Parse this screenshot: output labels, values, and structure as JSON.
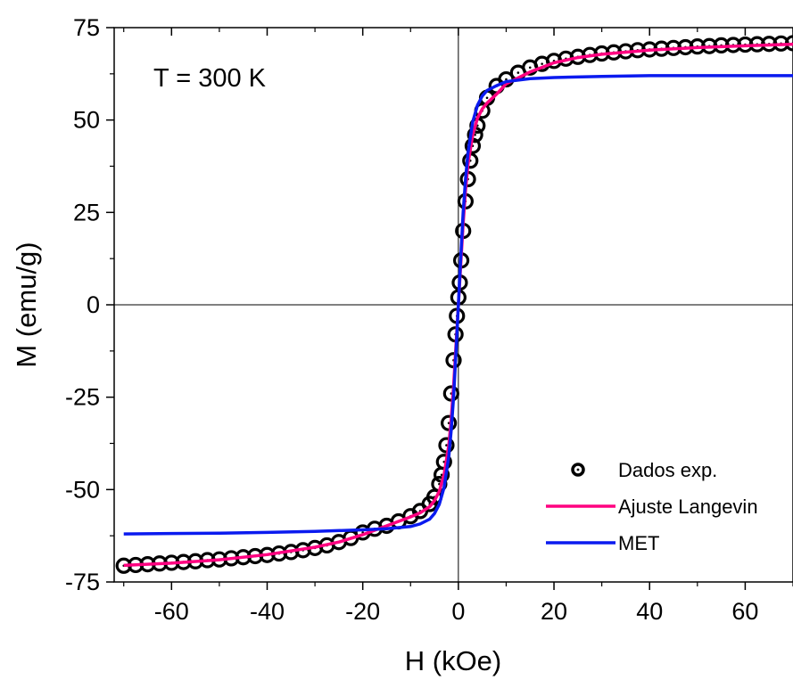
{
  "chart_data": {
    "type": "scatter",
    "annotation": "T = 300 K",
    "xlabel": "H (kOe)",
    "ylabel": "M (emu/g)",
    "xlim": [
      -72,
      70
    ],
    "ylim": [
      -75,
      75
    ],
    "x_ticks": [
      -60,
      -40,
      -20,
      0,
      20,
      40,
      60
    ],
    "x_tick_labels": [
      "-60",
      "-40",
      "-20",
      "0",
      "20",
      "40",
      "60"
    ],
    "y_ticks": [
      -75,
      -50,
      -25,
      0,
      25,
      50,
      75
    ],
    "y_tick_labels": [
      "-75",
      "-50",
      "-25",
      "0",
      "25",
      "50",
      "75"
    ],
    "grid": false,
    "zero_lines": true,
    "legend_position": "bottom-right",
    "series": [
      {
        "name": "Dados exp.",
        "kind": "markers",
        "marker": "open-circle",
        "color": "#000000",
        "x": [
          -70,
          -67.5,
          -65,
          -62.5,
          -60,
          -57.5,
          -55,
          -52.5,
          -50,
          -47.5,
          -45,
          -42.5,
          -40,
          -37.5,
          -35,
          -32.5,
          -30,
          -27.5,
          -25,
          -22.5,
          -20,
          -17.5,
          -15,
          -12.5,
          -10,
          -8,
          -6,
          -5,
          -4,
          -3.5,
          -3,
          -2.5,
          -2,
          -1.5,
          -1,
          -0.6,
          -0.3,
          0,
          0.3,
          0.6,
          1,
          1.5,
          2,
          2.5,
          3,
          3.5,
          4,
          5,
          6,
          8,
          10,
          12.5,
          15,
          17.5,
          20,
          22.5,
          25,
          27.5,
          30,
          32.5,
          35,
          37.5,
          40,
          42.5,
          45,
          47.5,
          50,
          52.5,
          55,
          57.5,
          60,
          62.5,
          65,
          67.5,
          70
        ],
        "y": [
          -70.6,
          -70.4,
          -70.2,
          -70.0,
          -69.8,
          -69.6,
          -69.4,
          -69.1,
          -68.9,
          -68.6,
          -68.3,
          -68.0,
          -67.7,
          -67.3,
          -66.9,
          -66.4,
          -65.8,
          -65.1,
          -64.2,
          -63.1,
          -61.6,
          -60.6,
          -59.8,
          -58.6,
          -57.2,
          -55.8,
          -53.9,
          -52.0,
          -48.5,
          -46.0,
          -42.5,
          -38.0,
          -32.0,
          -24.0,
          -15.0,
          -8.0,
          -3.0,
          2.0,
          6.0,
          12.0,
          20.0,
          28.0,
          34.0,
          39.0,
          43.0,
          46.0,
          48.5,
          52.5,
          56.0,
          59.2,
          61.0,
          62.8,
          64.2,
          65.2,
          66.0,
          66.6,
          67.1,
          67.6,
          68.0,
          68.3,
          68.6,
          68.9,
          69.1,
          69.3,
          69.5,
          69.7,
          69.9,
          70.0,
          70.2,
          70.3,
          70.4,
          70.5,
          70.6,
          70.7,
          70.8
        ]
      },
      {
        "name": "Ajuste Langevin",
        "kind": "line",
        "color": "#ff0080",
        "x": [
          -70,
          -60,
          -50,
          -40,
          -30,
          -25,
          -20,
          -15,
          -10,
          -8,
          -6,
          -5,
          -4,
          -3,
          -2,
          -1.5,
          -1,
          -0.5,
          0,
          0.5,
          1,
          1.5,
          2,
          3,
          4,
          5,
          6,
          8,
          10,
          15,
          20,
          25,
          30,
          40,
          50,
          60,
          70
        ],
        "y": [
          -70.5,
          -69.9,
          -69.0,
          -67.6,
          -65.6,
          -64.2,
          -62.2,
          -59.8,
          -57.4,
          -56.3,
          -54.6,
          -53.0,
          -50.5,
          -46.0,
          -38.0,
          -31.0,
          -22.0,
          -11.0,
          0,
          11.0,
          22.0,
          31.0,
          38.0,
          46.0,
          50.5,
          53.0,
          54.6,
          57.0,
          59.8,
          63.0,
          65.5,
          66.9,
          67.8,
          68.9,
          69.6,
          70.1,
          70.5
        ]
      },
      {
        "name": "MET",
        "kind": "line",
        "color": "#0a1aef",
        "x": [
          -70,
          -60,
          -50,
          -40,
          -30,
          -20,
          -15,
          -10,
          -8,
          -6,
          -5,
          -4,
          -3,
          -2,
          -1.5,
          -1,
          -0.5,
          0,
          0.5,
          1,
          1.5,
          2,
          3,
          4,
          5,
          6,
          8,
          10,
          15,
          20,
          30,
          40,
          50,
          60,
          70
        ],
        "y": [
          -62.0,
          -61.9,
          -61.8,
          -61.6,
          -61.3,
          -60.9,
          -60.6,
          -60.0,
          -59.3,
          -58.0,
          -56.5,
          -54.0,
          -49.5,
          -41.0,
          -34.0,
          -25.0,
          -13.0,
          0,
          13.0,
          25.0,
          34.0,
          41.0,
          49.5,
          54.0,
          56.5,
          58.0,
          59.3,
          60.4,
          61.2,
          61.5,
          61.8,
          62.0,
          62.0,
          62.0,
          62.0
        ]
      }
    ]
  }
}
